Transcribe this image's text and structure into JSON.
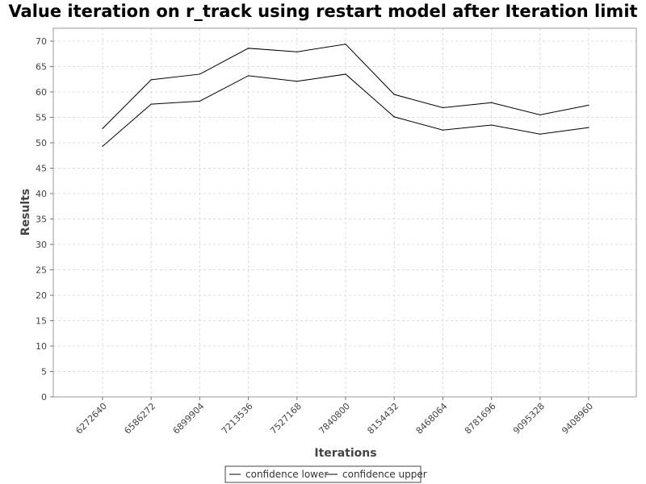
{
  "chart_data": {
    "type": "line",
    "title": "Value iteration on r_track using restart model after Iteration limit",
    "xlabel": "Iterations",
    "ylabel": "Results",
    "categories": [
      "6272640",
      "6586272",
      "6899904",
      "7213536",
      "7527168",
      "7840800",
      "8154432",
      "8468064",
      "8781696",
      "9095328",
      "9408960"
    ],
    "yticks": [
      "0",
      "5",
      "10",
      "15",
      "20",
      "25",
      "30",
      "35",
      "40",
      "45",
      "50",
      "55",
      "60",
      "65",
      "70"
    ],
    "ylim": [
      0,
      72
    ],
    "grid": true,
    "legend_position": "bottom-center",
    "series": [
      {
        "name": "confidence lower",
        "color": "#000000",
        "values": [
          49.3,
          57.6,
          58.2,
          63.2,
          62.1,
          63.5,
          55.1,
          52.5,
          53.5,
          51.7,
          53.0
        ]
      },
      {
        "name": "confidence upper",
        "color": "#000000",
        "values": [
          52.8,
          62.4,
          63.5,
          68.6,
          67.9,
          69.4,
          59.5,
          56.9,
          57.9,
          55.5,
          57.4
        ]
      }
    ]
  }
}
